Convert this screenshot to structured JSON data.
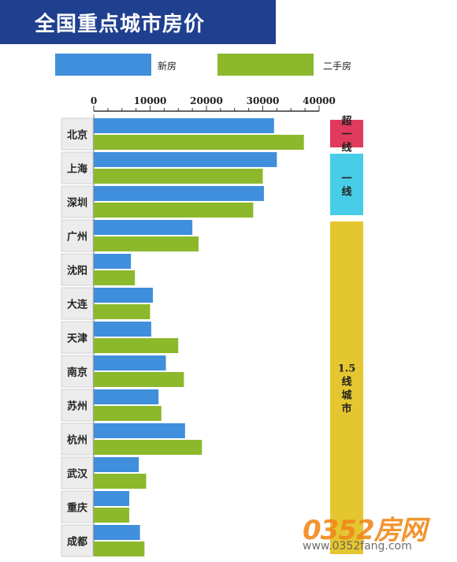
{
  "title": "全国重点城市房价",
  "legend": [
    {
      "label": "新房",
      "color": "#3f8fdc"
    },
    {
      "label": "二手房",
      "color": "#8cb82c"
    }
  ],
  "tiers": [
    {
      "label": "超一线",
      "color": "#e03a5c",
      "rows": [
        0,
        0
      ]
    },
    {
      "label": "一线",
      "color": "#47cde8",
      "rows": [
        1,
        2
      ]
    },
    {
      "label": "1.5线城市",
      "color": "#e4c630",
      "rows": [
        3,
        12
      ]
    }
  ],
  "watermark": {
    "logo": "0352房网",
    "url": "www.0352fang.com"
  },
  "chart_data": {
    "type": "bar",
    "orientation": "horizontal",
    "categories": [
      "北京",
      "上海",
      "深圳",
      "广州",
      "沈阳",
      "大连",
      "天津",
      "南京",
      "苏州",
      "杭州",
      "武汉",
      "重庆",
      "成都"
    ],
    "series": [
      {
        "name": "新房",
        "values": [
          32000,
          32500,
          30200,
          17500,
          6600,
          10500,
          10200,
          12800,
          11500,
          16200,
          8000,
          6300,
          8200
        ]
      },
      {
        "name": "二手房",
        "values": [
          37300,
          30000,
          28300,
          18600,
          7300,
          10000,
          15000,
          16000,
          12000,
          19200,
          9300,
          6300,
          9000
        ]
      }
    ],
    "xticks": [
      0,
      10000,
      20000,
      30000,
      40000
    ],
    "xlim": [
      0,
      40000
    ],
    "title": "全国重点城市房价",
    "legend_position": "top"
  }
}
